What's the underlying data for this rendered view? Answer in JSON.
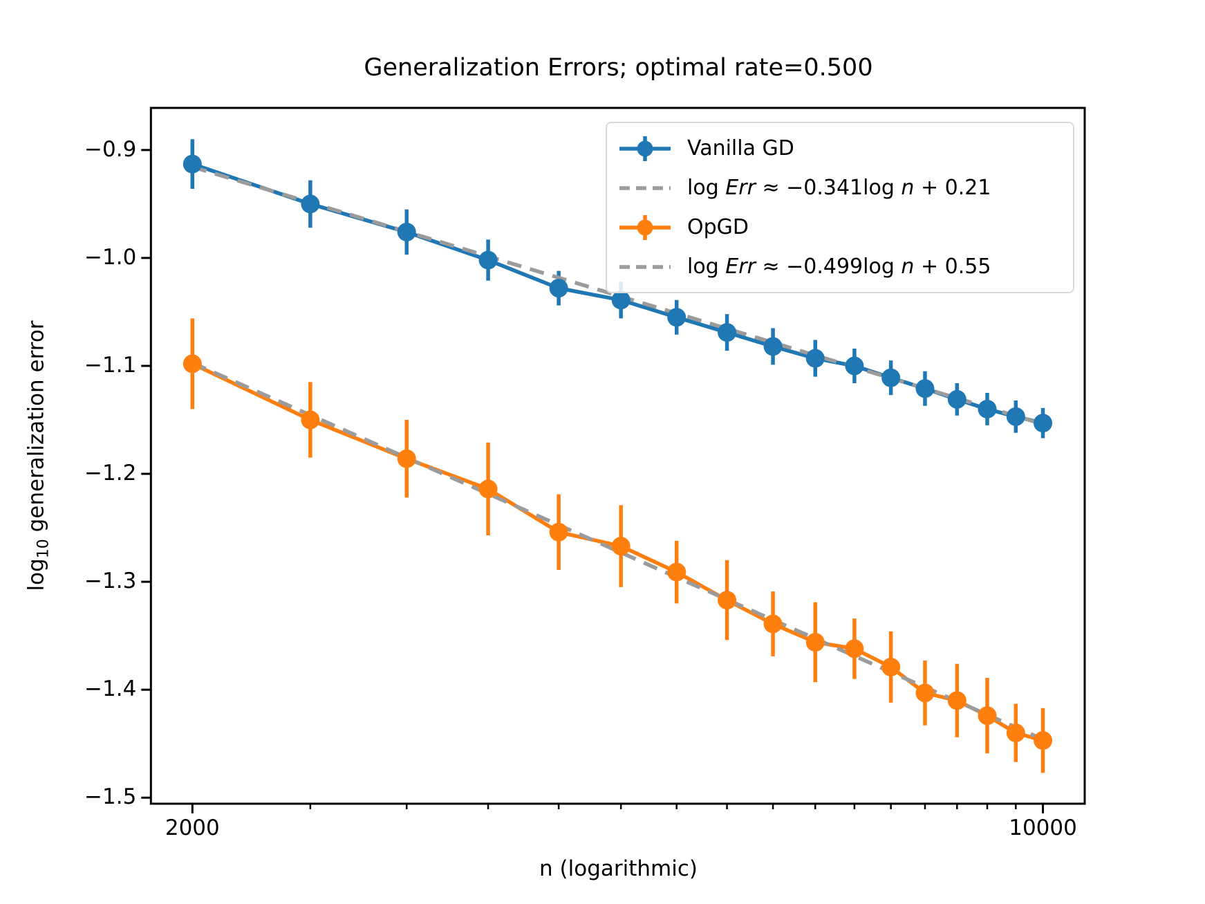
{
  "title": "Generalization Errors; optimal rate=0.500",
  "axes": {
    "xlabel": "n (logarithmic)",
    "ylabel": "log10 generalization error",
    "ylabel_parts": {
      "pre": "log",
      "sub": "10",
      "rest": " generalization error"
    },
    "x_scale": "log",
    "xlim": [
      1849,
      10823
    ],
    "ylim": [
      -1.5056,
      -0.861
    ],
    "x_major_ticks": [
      {
        "value": 2000,
        "label": "2000"
      },
      {
        "value": 10000,
        "label": "10000"
      }
    ],
    "x_minor_ticks": [
      2500,
      3000,
      3500,
      4000,
      4500,
      5000,
      5500,
      6000,
      6500,
      7000,
      7500,
      8000,
      8500,
      9000,
      9500
    ],
    "y_ticks": [
      {
        "value": -0.9,
        "label": "−0.9"
      },
      {
        "value": -1.0,
        "label": "−1.0"
      },
      {
        "value": -1.1,
        "label": "−1.1"
      },
      {
        "value": -1.2,
        "label": "−1.2"
      },
      {
        "value": -1.3,
        "label": "−1.3"
      },
      {
        "value": -1.4,
        "label": "−1.4"
      },
      {
        "value": -1.5,
        "label": "−1.5"
      }
    ],
    "grid": false
  },
  "colors": {
    "vanilla_gd": "#1f77b4",
    "opgd": "#ff7f0e",
    "fit_line": "#9b9b9b",
    "spine": "#000000",
    "legend_border": "#d9d9d9"
  },
  "legend": {
    "position": "upper right",
    "entries": [
      {
        "type": "errorbar",
        "color": "#1f77b4",
        "label": "Vanilla GD",
        "label_parts": [
          {
            "t": "Vanilla GD"
          }
        ]
      },
      {
        "type": "dashed",
        "color": "#9b9b9b",
        "label": "log Err ≈ −0.341log n + 0.21",
        "label_parts": [
          {
            "t": "log "
          },
          {
            "t": "Err",
            "i": true
          },
          {
            "t": " ≈ −0.341log "
          },
          {
            "t": "n",
            "i": true
          },
          {
            "t": " + 0.21"
          }
        ]
      },
      {
        "type": "errorbar",
        "color": "#ff7f0e",
        "label": "OpGD",
        "label_parts": [
          {
            "t": "OpGD"
          }
        ]
      },
      {
        "type": "dashed",
        "color": "#9b9b9b",
        "label": "log Err ≈ −0.499log n + 0.55",
        "label_parts": [
          {
            "t": "log "
          },
          {
            "t": "Err",
            "i": true
          },
          {
            "t": " ≈ −0.499log "
          },
          {
            "t": "n",
            "i": true
          },
          {
            "t": " + 0.55"
          }
        ]
      }
    ]
  },
  "chart_data": {
    "type": "line",
    "x_scale": "log",
    "title": "Generalization Errors; optimal rate=0.500",
    "xlabel": "n (logarithmic)",
    "ylabel": "log10 generalization error",
    "x": [
      2000,
      2500,
      3000,
      3500,
      4000,
      4500,
      5000,
      5500,
      6000,
      6500,
      7000,
      7500,
      8000,
      8500,
      9000,
      9500,
      10000
    ],
    "series": [
      {
        "name": "Vanilla GD",
        "style": "solid-marker-errorbar",
        "color": "#1f77b4",
        "values": [
          -0.913,
          -0.95,
          -0.976,
          -1.002,
          -1.028,
          -1.039,
          -1.055,
          -1.069,
          -1.082,
          -1.093,
          -1.1,
          -1.111,
          -1.121,
          -1.131,
          -1.14,
          -1.147,
          -1.153
        ],
        "errors": [
          0.023,
          0.022,
          0.021,
          0.019,
          0.016,
          0.017,
          0.016,
          0.017,
          0.017,
          0.017,
          0.016,
          0.016,
          0.016,
          0.015,
          0.015,
          0.015,
          0.014
        ]
      },
      {
        "name": "Vanilla GD fit",
        "style": "dashed-fit",
        "color": "#9b9b9b",
        "fit": {
          "slope": -0.341,
          "intercept": 0.21,
          "log_base": 10,
          "x_range": [
            2000,
            10000
          ]
        }
      },
      {
        "name": "OpGD",
        "style": "solid-marker-errorbar",
        "color": "#ff7f0e",
        "values": [
          -1.098,
          -1.15,
          -1.186,
          -1.214,
          -1.254,
          -1.267,
          -1.291,
          -1.317,
          -1.339,
          -1.356,
          -1.362,
          -1.379,
          -1.403,
          -1.41,
          -1.424,
          -1.44,
          -1.447
        ],
        "errors": [
          0.042,
          0.035,
          0.036,
          0.043,
          0.035,
          0.038,
          0.029,
          0.037,
          0.03,
          0.037,
          0.028,
          0.033,
          0.03,
          0.034,
          0.035,
          0.027,
          0.03
        ]
      },
      {
        "name": "OpGD fit",
        "style": "dashed-fit",
        "color": "#9b9b9b",
        "fit": {
          "slope": -0.499,
          "intercept": 0.55,
          "log_base": 10,
          "x_range": [
            2000,
            10000
          ]
        }
      }
    ]
  }
}
